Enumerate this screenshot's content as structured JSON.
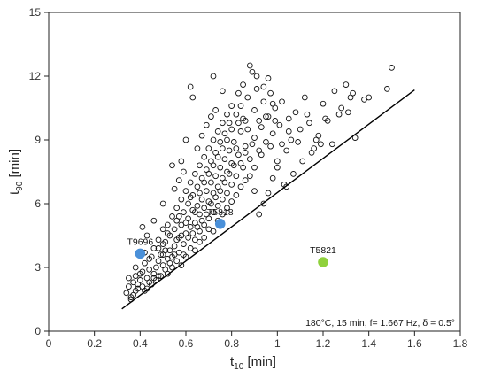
{
  "chart_data": {
    "type": "scatter",
    "x_axis": {
      "label_main": "t",
      "label_sub": "10",
      "label_unit": " [min]",
      "range": [
        0,
        1.8
      ],
      "ticks": [
        0,
        0.2,
        0.4,
        0.6,
        0.8,
        1,
        1.2,
        1.4,
        1.6,
        1.8
      ],
      "tick_labels": [
        "0",
        "0.2",
        "0.4",
        "0.6",
        "0.8",
        "1",
        "1.2",
        "1.4",
        "1.6",
        "1.8"
      ]
    },
    "y_axis": {
      "label_main": "t",
      "label_sub": "90",
      "label_unit": " [min]",
      "range": [
        0,
        15
      ],
      "ticks": [
        0,
        3,
        6,
        9,
        12,
        15
      ],
      "tick_labels": [
        "0",
        "3",
        "6",
        "9",
        "12",
        "15"
      ]
    },
    "annotation": "180°C, 15 min, f= 1.667 Hz, δ = 0.5°",
    "grid": false,
    "trend_line": {
      "x": [
        0.32,
        1.6
      ],
      "y": [
        1.05,
        11.35
      ]
    },
    "highlighted_points": [
      {
        "label": "T9696",
        "x": 0.4,
        "y": 3.65,
        "color": "#4a90d9"
      },
      {
        "label": "T5818",
        "x": 0.75,
        "y": 5.05,
        "color": "#4a90d9"
      },
      {
        "label": "T5821",
        "x": 1.2,
        "y": 3.25,
        "color": "#8fd13c"
      }
    ],
    "points": [
      [
        0.34,
        1.8
      ],
      [
        0.35,
        2.1
      ],
      [
        0.36,
        1.6
      ],
      [
        0.37,
        2.3
      ],
      [
        0.38,
        1.9
      ],
      [
        0.38,
        2.6
      ],
      [
        0.39,
        2.0
      ],
      [
        0.4,
        2.4
      ],
      [
        0.41,
        2.8
      ],
      [
        0.42,
        1.9
      ],
      [
        0.42,
        3.2
      ],
      [
        0.43,
        2.5
      ],
      [
        0.44,
        2.9
      ],
      [
        0.45,
        2.2
      ],
      [
        0.45,
        3.5
      ],
      [
        0.46,
        2.7
      ],
      [
        0.47,
        3.0
      ],
      [
        0.47,
        2.4
      ],
      [
        0.48,
        3.3
      ],
      [
        0.48,
        3.9
      ],
      [
        0.49,
        2.6
      ],
      [
        0.5,
        3.1
      ],
      [
        0.5,
        3.6
      ],
      [
        0.51,
        2.9
      ],
      [
        0.51,
        4.2
      ],
      [
        0.52,
        3.4
      ],
      [
        0.52,
        2.7
      ],
      [
        0.53,
        3.8
      ],
      [
        0.53,
        4.5
      ],
      [
        0.54,
        3.0
      ],
      [
        0.54,
        3.5
      ],
      [
        0.55,
        4.0
      ],
      [
        0.55,
        4.8
      ],
      [
        0.56,
        3.3
      ],
      [
        0.56,
        5.2
      ],
      [
        0.57,
        3.7
      ],
      [
        0.57,
        4.4
      ],
      [
        0.58,
        3.1
      ],
      [
        0.58,
        5.0
      ],
      [
        0.59,
        4.1
      ],
      [
        0.59,
        5.6
      ],
      [
        0.6,
        3.5
      ],
      [
        0.6,
        4.6
      ],
      [
        0.61,
        5.3
      ],
      [
        0.61,
        6.0
      ],
      [
        0.62,
        3.9
      ],
      [
        0.62,
        4.9
      ],
      [
        0.63,
        5.7
      ],
      [
        0.63,
        6.4
      ],
      [
        0.64,
        4.3
      ],
      [
        0.64,
        5.1
      ],
      [
        0.65,
        5.9
      ],
      [
        0.65,
        6.8
      ],
      [
        0.66,
        4.7
      ],
      [
        0.66,
        5.5
      ],
      [
        0.67,
        6.2
      ],
      [
        0.67,
        7.2
      ],
      [
        0.68,
        5.0
      ],
      [
        0.68,
        5.8
      ],
      [
        0.69,
        6.6
      ],
      [
        0.69,
        7.6
      ],
      [
        0.7,
        5.3
      ],
      [
        0.7,
        6.1
      ],
      [
        0.71,
        7.0
      ],
      [
        0.71,
        8.0
      ],
      [
        0.72,
        5.6
      ],
      [
        0.72,
        6.5
      ],
      [
        0.73,
        7.3
      ],
      [
        0.73,
        8.4
      ],
      [
        0.74,
        5.9
      ],
      [
        0.74,
        6.8
      ],
      [
        0.75,
        7.7
      ],
      [
        0.75,
        8.9
      ],
      [
        0.76,
        6.2
      ],
      [
        0.76,
        7.2
      ],
      [
        0.77,
        8.1
      ],
      [
        0.77,
        9.3
      ],
      [
        0.78,
        6.5
      ],
      [
        0.78,
        7.5
      ],
      [
        0.79,
        8.5
      ],
      [
        0.79,
        9.8
      ],
      [
        0.8,
        6.9
      ],
      [
        0.8,
        7.9
      ],
      [
        0.81,
        8.9
      ],
      [
        0.82,
        10.2
      ],
      [
        0.82,
        7.3
      ],
      [
        0.83,
        8.3
      ],
      [
        0.84,
        9.4
      ],
      [
        0.84,
        10.6
      ],
      [
        0.85,
        7.7
      ],
      [
        0.86,
        8.7
      ],
      [
        0.86,
        9.9
      ],
      [
        0.87,
        11.0
      ],
      [
        0.88,
        8.1
      ],
      [
        0.88,
        12.5
      ],
      [
        0.89,
        12.2
      ],
      [
        0.9,
        9.1
      ],
      [
        0.9,
        10.4
      ],
      [
        0.91,
        11.4
      ],
      [
        0.92,
        8.5
      ],
      [
        0.93,
        9.6
      ],
      [
        0.94,
        10.8
      ],
      [
        0.95,
        8.9
      ],
      [
        0.96,
        10.1
      ],
      [
        0.97,
        11.2
      ],
      [
        0.98,
        9.3
      ],
      [
        0.99,
        10.5
      ],
      [
        1.0,
        8.0
      ],
      [
        1.01,
        9.7
      ],
      [
        1.02,
        10.8
      ],
      [
        1.03,
        6.9
      ],
      [
        1.04,
        8.5
      ],
      [
        1.05,
        10.0
      ],
      [
        1.06,
        9.0
      ],
      [
        1.08,
        10.3
      ],
      [
        1.1,
        9.5
      ],
      [
        1.12,
        11.0
      ],
      [
        1.14,
        9.8
      ],
      [
        1.16,
        8.6
      ],
      [
        1.18,
        9.2
      ],
      [
        1.2,
        10.7
      ],
      [
        1.22,
        9.9
      ],
      [
        1.25,
        11.3
      ],
      [
        1.27,
        10.2
      ],
      [
        1.3,
        11.6
      ],
      [
        1.32,
        11.0
      ],
      [
        1.34,
        9.1
      ],
      [
        1.38,
        10.9
      ],
      [
        1.48,
        11.4
      ],
      [
        1.5,
        12.4
      ],
      [
        0.36,
        1.5
      ],
      [
        0.37,
        1.7
      ],
      [
        0.39,
        2.2
      ],
      [
        0.41,
        2.1
      ],
      [
        0.43,
        2.0
      ],
      [
        0.44,
        2.3
      ],
      [
        0.46,
        2.5
      ],
      [
        0.48,
        2.6
      ],
      [
        0.49,
        3.6
      ],
      [
        0.5,
        4.1
      ],
      [
        0.51,
        3.8
      ],
      [
        0.52,
        4.6
      ],
      [
        0.53,
        3.2
      ],
      [
        0.55,
        3.6
      ],
      [
        0.56,
        4.3
      ],
      [
        0.57,
        5.4
      ],
      [
        0.58,
        4.5
      ],
      [
        0.59,
        3.6
      ],
      [
        0.6,
        5.1
      ],
      [
        0.61,
        4.4
      ],
      [
        0.62,
        6.3
      ],
      [
        0.63,
        4.6
      ],
      [
        0.64,
        5.6
      ],
      [
        0.65,
        4.9
      ],
      [
        0.66,
        6.5
      ],
      [
        0.67,
        5.2
      ],
      [
        0.68,
        7.0
      ],
      [
        0.69,
        5.5
      ],
      [
        0.7,
        7.4
      ],
      [
        0.71,
        6.0
      ],
      [
        0.72,
        7.8
      ],
      [
        0.73,
        6.3
      ],
      [
        0.74,
        8.2
      ],
      [
        0.75,
        6.6
      ],
      [
        0.76,
        8.6
      ],
      [
        0.77,
        7.0
      ],
      [
        0.78,
        9.0
      ],
      [
        0.79,
        7.4
      ],
      [
        0.8,
        9.5
      ],
      [
        0.81,
        7.8
      ],
      [
        0.82,
        8.6
      ],
      [
        0.83,
        9.8
      ],
      [
        0.84,
        7.9
      ],
      [
        0.85,
        10.0
      ],
      [
        0.86,
        8.4
      ],
      [
        0.87,
        9.5
      ],
      [
        0.89,
        8.8
      ],
      [
        0.9,
        7.7
      ],
      [
        0.92,
        9.9
      ],
      [
        0.93,
        8.3
      ],
      [
        0.95,
        10.1
      ],
      [
        0.97,
        8.7
      ],
      [
        0.99,
        9.9
      ],
      [
        1.02,
        8.8
      ],
      [
        1.05,
        9.4
      ],
      [
        1.09,
        8.9
      ],
      [
        1.13,
        10.2
      ],
      [
        1.17,
        9.0
      ],
      [
        1.21,
        10.0
      ],
      [
        1.24,
        8.8
      ],
      [
        1.28,
        10.5
      ],
      [
        1.31,
        10.3
      ],
      [
        1.33,
        11.2
      ],
      [
        1.4,
        11.0
      ],
      [
        0.35,
        2.5
      ],
      [
        0.38,
        3.0
      ],
      [
        0.4,
        2.7
      ],
      [
        0.42,
        3.7
      ],
      [
        0.44,
        3.4
      ],
      [
        0.46,
        3.9
      ],
      [
        0.48,
        4.3
      ],
      [
        0.5,
        4.8
      ],
      [
        0.52,
        5.0
      ],
      [
        0.54,
        5.4
      ],
      [
        0.56,
        5.8
      ],
      [
        0.58,
        6.2
      ],
      [
        0.6,
        6.6
      ],
      [
        0.62,
        7.0
      ],
      [
        0.64,
        7.4
      ],
      [
        0.66,
        7.8
      ],
      [
        0.68,
        8.2
      ],
      [
        0.7,
        8.6
      ],
      [
        0.72,
        9.0
      ],
      [
        0.74,
        9.4
      ],
      [
        0.76,
        9.8
      ],
      [
        0.78,
        10.2
      ],
      [
        0.8,
        10.6
      ],
      [
        0.62,
        11.5
      ],
      [
        0.63,
        11.0
      ],
      [
        0.72,
        12.0
      ],
      [
        0.76,
        11.3
      ],
      [
        0.6,
        9.0
      ],
      [
        0.58,
        8.0
      ],
      [
        0.54,
        7.8
      ],
      [
        0.5,
        6.0
      ],
      [
        0.46,
        5.2
      ],
      [
        0.41,
        4.9
      ],
      [
        0.43,
        4.5
      ],
      [
        0.55,
        6.7
      ],
      [
        0.57,
        7.1
      ],
      [
        0.59,
        7.5
      ],
      [
        0.65,
        8.6
      ],
      [
        0.67,
        9.2
      ],
      [
        0.69,
        9.7
      ],
      [
        0.71,
        10.1
      ],
      [
        0.73,
        10.4
      ],
      [
        0.83,
        11.2
      ],
      [
        0.85,
        11.6
      ],
      [
        0.91,
        12.0
      ],
      [
        0.94,
        11.5
      ],
      [
        0.96,
        11.9
      ],
      [
        0.98,
        10.7
      ],
      [
        0.64,
        3.8
      ],
      [
        0.66,
        4.2
      ],
      [
        0.68,
        4.4
      ],
      [
        0.7,
        4.8
      ],
      [
        0.72,
        4.7
      ],
      [
        0.74,
        5.2
      ],
      [
        0.76,
        5.5
      ],
      [
        0.78,
        5.8
      ],
      [
        0.8,
        6.1
      ],
      [
        0.82,
        6.4
      ],
      [
        0.84,
        6.8
      ],
      [
        0.86,
        7.1
      ],
      [
        0.88,
        7.3
      ],
      [
        0.9,
        6.6
      ],
      [
        0.92,
        5.5
      ],
      [
        0.94,
        6.0
      ],
      [
        0.96,
        6.5
      ],
      [
        0.98,
        7.2
      ],
      [
        1.0,
        7.7
      ],
      [
        1.04,
        6.8
      ],
      [
        1.07,
        7.4
      ],
      [
        1.11,
        8.0
      ],
      [
        1.15,
        8.4
      ],
      [
        1.19,
        8.8
      ]
    ]
  }
}
